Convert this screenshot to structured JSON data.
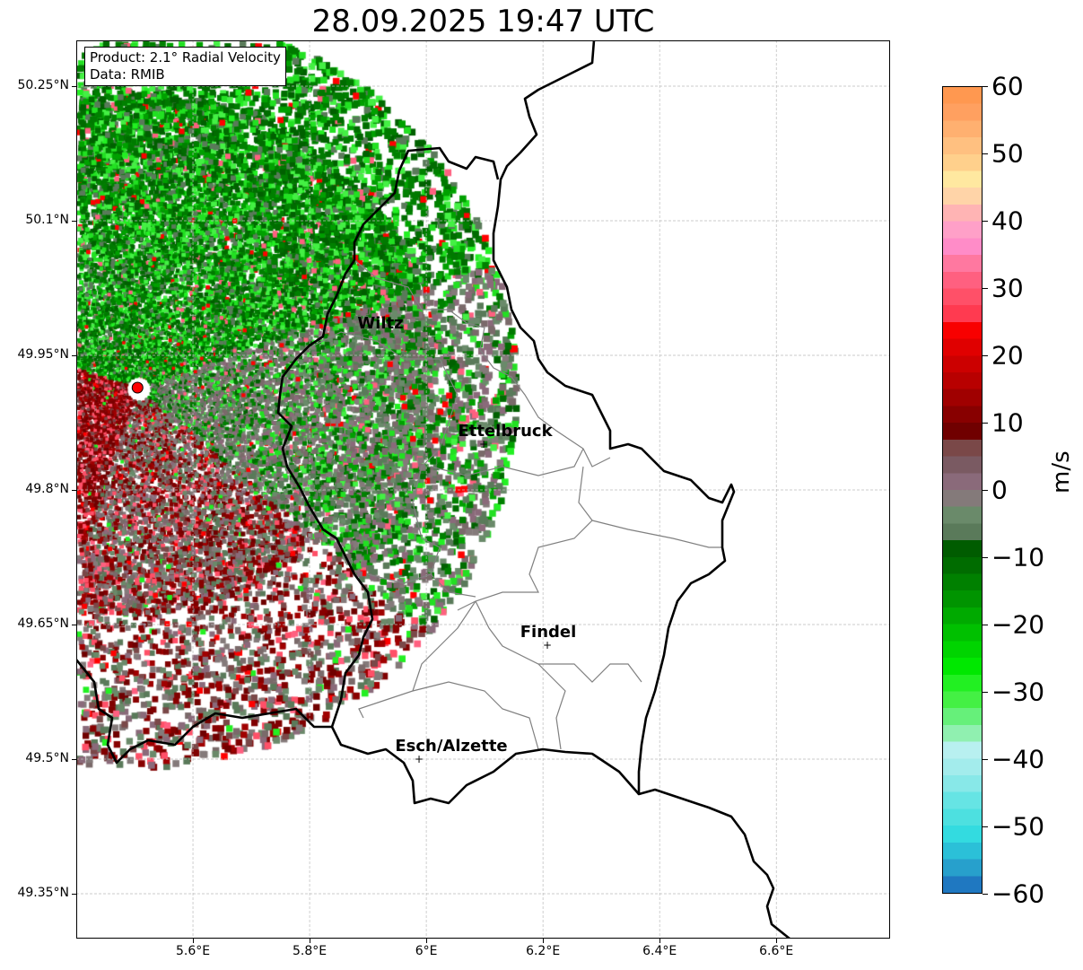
{
  "title": "28.09.2025 19:47 UTC",
  "legend": {
    "product": "Product: 2.1° Radial Velocity",
    "data": "Data: RMIB"
  },
  "axes": {
    "lat_ticks": [
      "50.25°N",
      "50.1°N",
      "49.95°N",
      "49.8°N",
      "49.65°N",
      "49.5°N",
      "49.35°N"
    ],
    "lat_values": [
      50.25,
      50.1,
      49.95,
      49.8,
      49.65,
      49.5,
      49.35
    ],
    "lon_ticks": [
      "5.6°E",
      "5.8°E",
      "6°E",
      "6.2°E",
      "6.4°E",
      "6.6°E"
    ],
    "lon_values": [
      5.6,
      5.8,
      6.0,
      6.2,
      6.4,
      6.6
    ],
    "lon_range": [
      5.4,
      6.795
    ],
    "lat_range": [
      49.3,
      50.301
    ]
  },
  "colorbar": {
    "unit": "m/s",
    "range": [
      -60,
      60
    ],
    "tick_labels": [
      "60",
      "50",
      "40",
      "30",
      "20",
      "10",
      "0",
      "−10",
      "−20",
      "−30",
      "−40",
      "−50",
      "−60"
    ],
    "tick_values": [
      60,
      50,
      40,
      30,
      20,
      10,
      0,
      -10,
      -20,
      -30,
      -40,
      -50,
      -60
    ],
    "colors": [
      "#1f78c1",
      "#27a0cc",
      "#2bc0d8",
      "#33dbe0",
      "#4de0e0",
      "#66e4e4",
      "#88e8e8",
      "#a3ecec",
      "#b8f0f0",
      "#90f0b0",
      "#66f07a",
      "#44f044",
      "#22f022",
      "#00e800",
      "#00d400",
      "#00c000",
      "#00aa00",
      "#009400",
      "#008000",
      "#006c00",
      "#005c00",
      "#5a7a5a",
      "#6a8a6a",
      "#847a7a",
      "#8a6a7a",
      "#7a5a62",
      "#7a4848",
      "#700000",
      "#880000",
      "#a00000",
      "#b80000",
      "#cc0000",
      "#e00000",
      "#f80000",
      "#ff3a50",
      "#ff5068",
      "#ff6080",
      "#ff78a0",
      "#ff8cc8",
      "#ffa0c8",
      "#ffb4b4",
      "#ffd4a8",
      "#ffe8a0",
      "#ffd08c",
      "#ffc080",
      "#ffb070",
      "#ffa060",
      "#ff9850"
    ]
  },
  "radar_site": {
    "lon": 5.505,
    "lat": 49.914,
    "color": "#ff0000"
  },
  "cities": [
    {
      "name": "Wiltz",
      "lon": 5.93,
      "lat": 49.97,
      "marker": false
    },
    {
      "name": "Ettelbruck",
      "lon": 6.1,
      "lat": 49.85,
      "marker": true
    },
    {
      "name": "Findel",
      "lon": 6.21,
      "lat": 49.626,
      "marker": true
    },
    {
      "name": "Esch/Alzette",
      "lon": 5.99,
      "lat": 49.499,
      "marker": true
    }
  ]
}
